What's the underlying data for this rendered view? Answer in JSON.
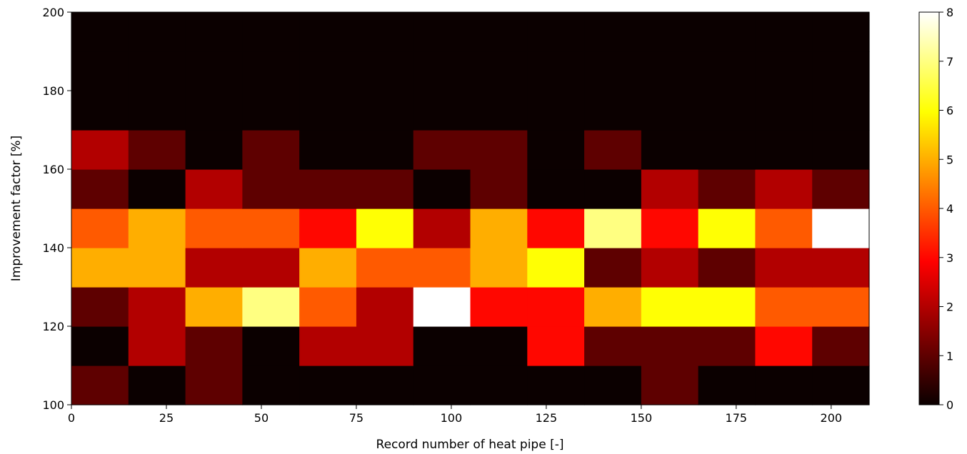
{
  "chart_data": {
    "type": "heatmap",
    "title": "",
    "xlabel": "Record number of heat pipe [-]",
    "ylabel": "Improvement factor [%]",
    "xlim": [
      0,
      210
    ],
    "ylim": [
      100,
      200
    ],
    "x_edges": [
      0,
      15,
      30,
      45,
      60,
      75,
      90,
      105,
      120,
      135,
      150,
      165,
      180,
      195,
      210
    ],
    "y_edges": [
      100,
      110,
      120,
      130,
      140,
      150,
      160,
      170,
      180,
      190,
      200
    ],
    "x_ticks": [
      0,
      25,
      50,
      75,
      100,
      125,
      150,
      175,
      200
    ],
    "y_ticks": [
      100,
      120,
      140,
      160,
      180,
      200
    ],
    "colormap": "hot",
    "colorbar": {
      "min": 0,
      "max": 8,
      "ticks": [
        0,
        1,
        2,
        3,
        4,
        5,
        6,
        7,
        8
      ]
    },
    "grid": false,
    "counts_rows_bottom_to_top": [
      [
        1,
        0,
        1,
        0,
        0,
        0,
        0,
        0,
        0,
        0,
        1,
        0,
        0,
        0
      ],
      [
        0,
        2,
        1,
        0,
        2,
        2,
        0,
        0,
        3,
        1,
        1,
        1,
        3,
        1
      ],
      [
        1,
        2,
        5,
        7,
        4,
        2,
        8,
        3,
        3,
        5,
        6,
        6,
        4,
        4
      ],
      [
        5,
        5,
        2,
        2,
        5,
        4,
        4,
        5,
        6,
        1,
        2,
        1,
        2,
        2
      ],
      [
        4,
        5,
        4,
        4,
        3,
        6,
        2,
        5,
        3,
        7,
        3,
        6,
        4,
        8
      ],
      [
        1,
        0,
        2,
        1,
        1,
        1,
        0,
        1,
        0,
        0,
        2,
        1,
        2,
        1
      ],
      [
        2,
        1,
        0,
        1,
        0,
        0,
        1,
        1,
        0,
        1,
        0,
        0,
        0,
        0
      ],
      [
        0,
        0,
        0,
        0,
        0,
        0,
        0,
        0,
        0,
        0,
        0,
        0,
        0,
        0
      ],
      [
        0,
        0,
        0,
        0,
        0,
        0,
        0,
        0,
        0,
        0,
        0,
        0,
        0,
        0
      ],
      [
        0,
        0,
        0,
        0,
        0,
        0,
        0,
        0,
        0,
        0,
        0,
        0,
        0,
        0
      ]
    ]
  }
}
